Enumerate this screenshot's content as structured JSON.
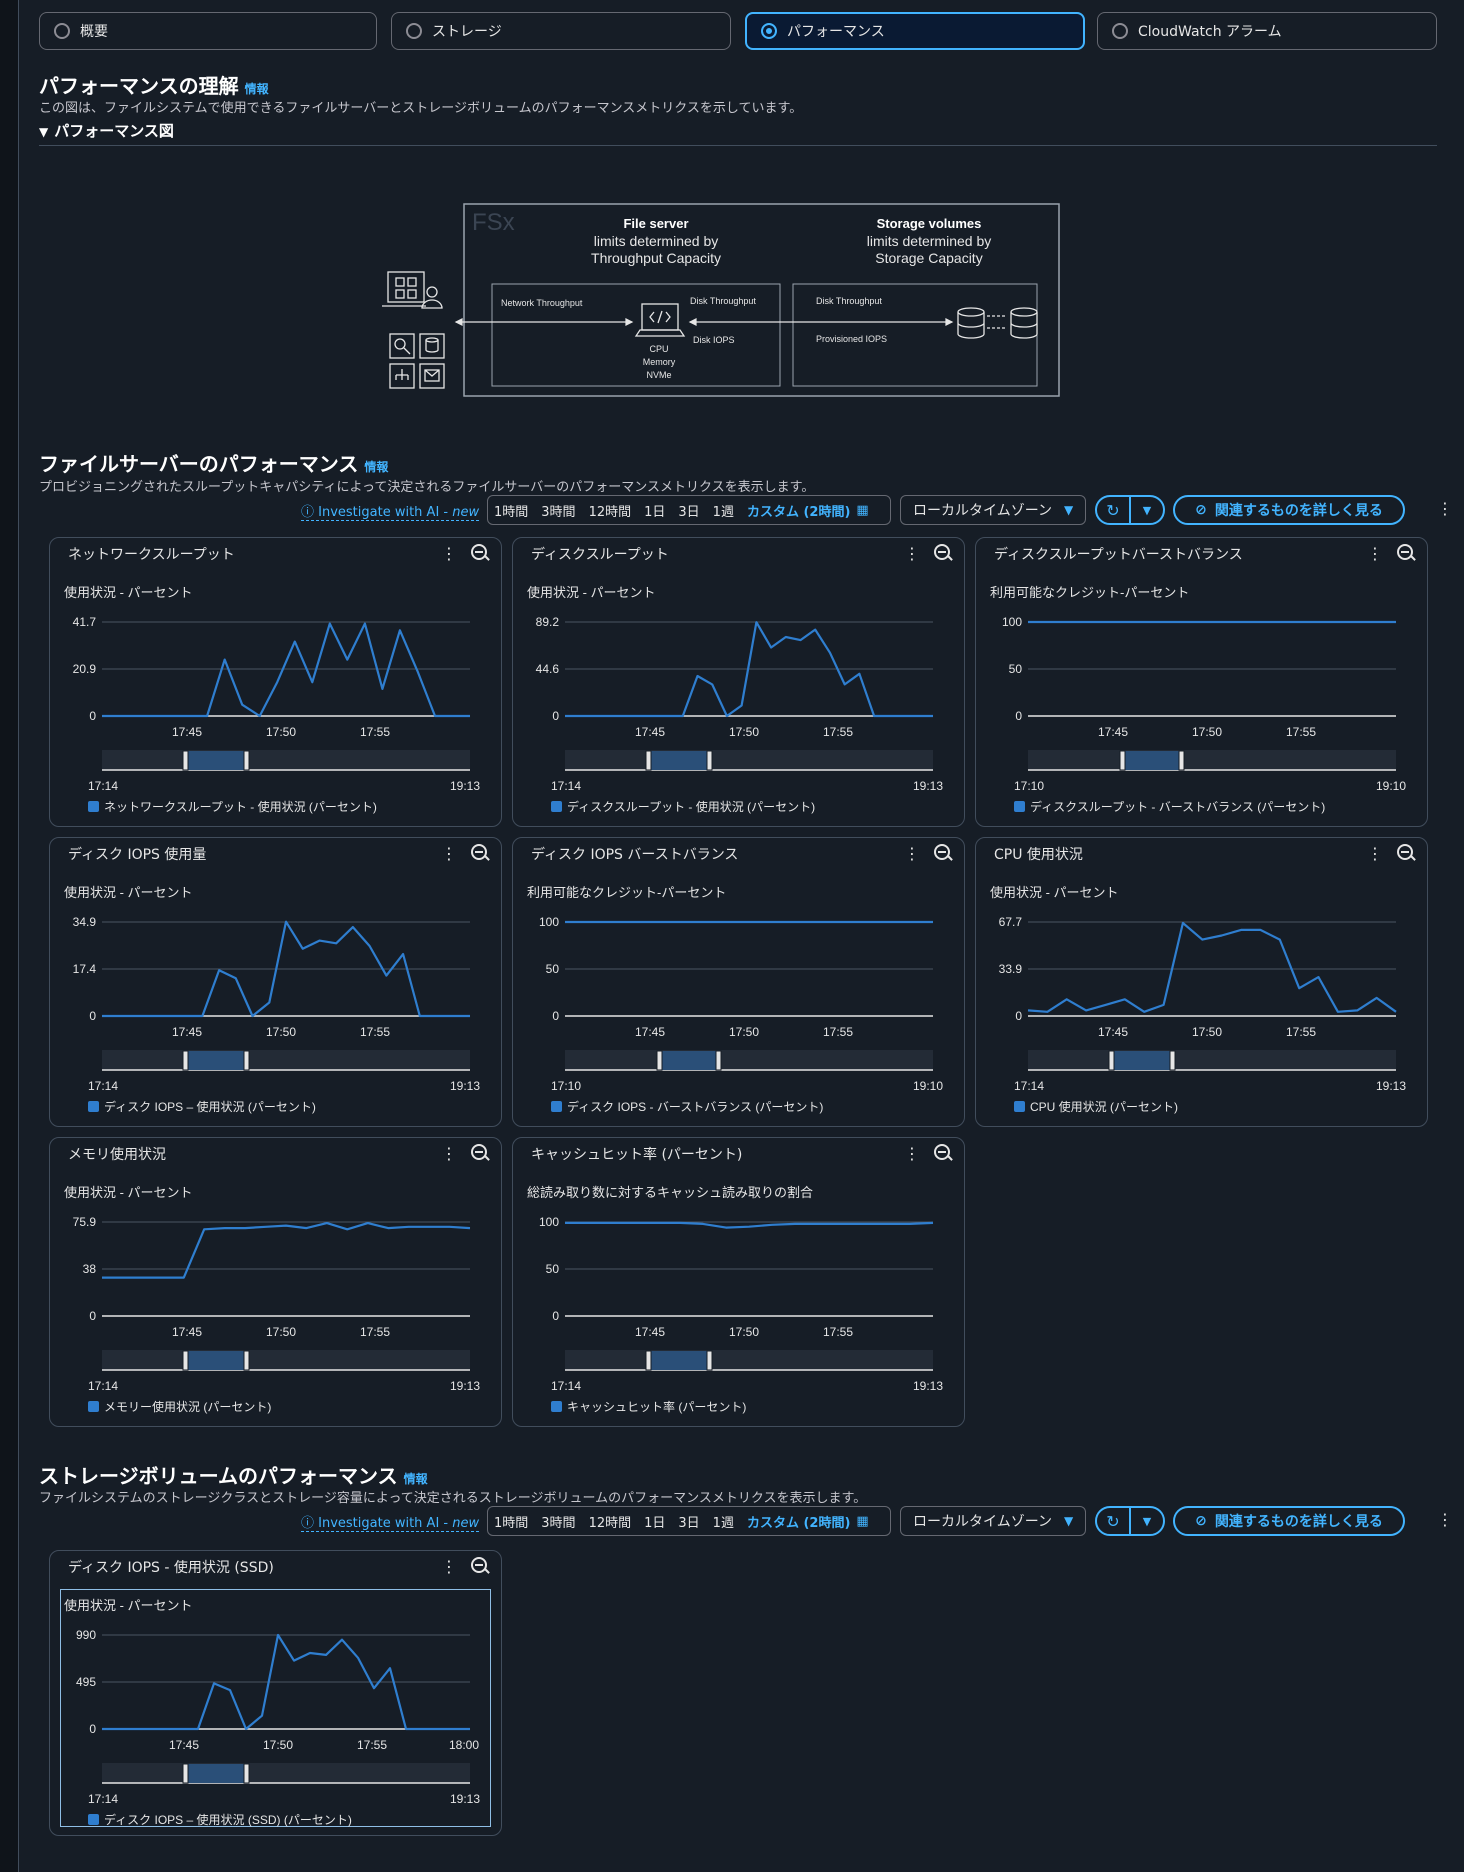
{
  "tabs": [
    {
      "label": "概要",
      "selected": false
    },
    {
      "label": "ストレージ",
      "selected": false
    },
    {
      "label": "パフォーマンス",
      "selected": true
    },
    {
      "label": "CloudWatch アラーム",
      "selected": false
    }
  ],
  "perf_understanding": {
    "title": "パフォーマンスの理解",
    "info": "情報",
    "desc": "この図は、ファイルシステムで使用できるファイルサーバーとストレージボリュームのパフォーマンスメトリクスを示しています。",
    "expander": "パフォーマンス図"
  },
  "diagram": {
    "logo": "FSx",
    "file_server_title": "File server",
    "file_server_sub1": "limits determined by",
    "file_server_sub2": "Throughput Capacity",
    "storage_title": "Storage volumes",
    "storage_sub1": "limits determined by",
    "storage_sub2": "Storage Capacity",
    "network_throughput": "Network Throughput",
    "disk_throughput": "Disk Throughput",
    "disk_iops": "Disk IOPS",
    "disk_throughput_2": "Disk Throughput",
    "provisioned_iops": "Provisioned IOPS",
    "cpu": "CPU",
    "memory": "Memory",
    "nvme": "NVMe"
  },
  "file_server": {
    "title": "ファイルサーバーのパフォーマンス",
    "info": "情報",
    "desc": "プロビジョニングされたスループットキャパシティによって決定されるファイルサーバーのパフォーマンスメトリクスを表示します。"
  },
  "storage": {
    "title": "ストレージボリュームのパフォーマンス",
    "info": "情報",
    "desc": "ファイルシステムのストレージクラスとストレージ容量によって決定されるストレージボリュームのパフォーマンスメトリクスを表示します。"
  },
  "toolbar": {
    "ai_label": "Investigate with AI - ",
    "ai_new": "new",
    "ranges": [
      "1時間",
      "3時間",
      "12時間",
      "1日",
      "3日",
      "1週"
    ],
    "custom": "カスタム (2時間)",
    "timezone": "ローカルタイムゾーン",
    "explore": "関連するものを詳しく見る"
  },
  "colors": {
    "series": "#2f7ecf",
    "accent": "#42b4ff"
  },
  "chart_data": [
    {
      "type": "line",
      "title": "ネットワークスループット",
      "subtitle": "使用状況 - パーセント",
      "ylim": [
        0,
        41.7
      ],
      "yticks": [
        "41.7",
        "20.9",
        "0"
      ],
      "xticks": [
        "17:45",
        "17:50",
        "17:55"
      ],
      "range_start": "17:14",
      "range_end": "19:13",
      "legend": "ネットワークスループット - 使用状況 (パーセント)",
      "values": [
        0,
        0,
        0,
        0,
        0,
        0,
        0,
        25,
        5,
        0,
        15,
        33,
        15,
        41,
        25,
        41,
        12,
        38,
        20,
        0,
        0,
        0
      ]
    },
    {
      "type": "line",
      "title": "ディスクスループット",
      "subtitle": "使用状況 - パーセント",
      "ylim": [
        0,
        89.2
      ],
      "yticks": [
        "89.2",
        "44.6",
        "0"
      ],
      "xticks": [
        "17:45",
        "17:50",
        "17:55"
      ],
      "range_start": "17:14",
      "range_end": "19:13",
      "legend": "ディスクスループット - 使用状況 (パーセント)",
      "values": [
        0,
        0,
        0,
        0,
        0,
        0,
        0,
        0,
        0,
        38,
        30,
        0,
        10,
        89,
        65,
        75,
        72,
        82,
        60,
        30,
        40,
        0,
        0,
        0,
        0,
        0
      ]
    },
    {
      "type": "line",
      "title": "ディスクスループットバーストバランス",
      "subtitle": "利用可能なクレジット-パーセント",
      "ylim": [
        0,
        100
      ],
      "yticks": [
        "100",
        "50",
        "0"
      ],
      "xticks": [
        "17:45",
        "17:50",
        "17:55"
      ],
      "range_start": "17:10",
      "range_end": "19:10",
      "legend": "ディスクスループット - バーストバランス (パーセント)",
      "values": [
        100,
        100,
        100,
        100,
        100,
        100,
        100,
        100,
        100,
        100
      ]
    },
    {
      "type": "line",
      "title": "ディスク IOPS 使用量",
      "subtitle": "使用状況 - パーセント",
      "ylim": [
        0,
        34.9
      ],
      "yticks": [
        "34.9",
        "17.4",
        "0"
      ],
      "xticks": [
        "17:45",
        "17:50",
        "17:55"
      ],
      "range_start": "17:14",
      "range_end": "19:13",
      "legend": "ディスク IOPS – 使用状況 (パーセント)",
      "values": [
        0,
        0,
        0,
        0,
        0,
        0,
        0,
        17,
        14,
        0,
        5,
        35,
        25,
        28,
        27,
        33,
        26,
        15,
        23,
        0,
        0,
        0,
        0
      ]
    },
    {
      "type": "line",
      "title": "ディスク IOPS バーストバランス",
      "subtitle": "利用可能なクレジット-パーセント",
      "ylim": [
        0,
        100
      ],
      "yticks": [
        "100",
        "50",
        "0"
      ],
      "xticks": [
        "17:45",
        "17:50",
        "17:55"
      ],
      "range_start": "17:10",
      "range_end": "19:10",
      "legend": "ディスク IOPS - バーストバランス (パーセント)",
      "values": [
        100,
        100,
        100,
        100,
        100,
        100,
        100,
        100,
        100,
        100
      ]
    },
    {
      "type": "line",
      "title": "CPU 使用状況",
      "subtitle": "使用状況 - パーセント",
      "ylim": [
        0,
        67.7
      ],
      "yticks": [
        "67.7",
        "33.9",
        "0"
      ],
      "xticks": [
        "17:45",
        "17:50",
        "17:55"
      ],
      "range_start": "17:14",
      "range_end": "19:13",
      "legend": "CPU 使用状況 (パーセント)",
      "values": [
        4,
        3,
        12,
        4,
        8,
        12,
        3,
        8,
        67,
        55,
        58,
        62,
        62,
        55,
        20,
        28,
        3,
        4,
        13,
        3
      ]
    },
    {
      "type": "line",
      "title": "メモリ使用状況",
      "subtitle": "使用状況 - パーセント",
      "ylim": [
        0,
        75.9
      ],
      "yticks": [
        "75.9",
        "38",
        "0"
      ],
      "xticks": [
        "17:45",
        "17:50",
        "17:55"
      ],
      "range_start": "17:14",
      "range_end": "19:13",
      "legend": "メモリー使用状況 (パーセント)",
      "values": [
        31,
        31,
        31,
        31,
        31,
        70,
        71,
        71,
        72,
        73,
        71,
        75,
        70,
        75,
        71,
        72,
        72,
        72,
        71
      ]
    },
    {
      "type": "line",
      "title": "キャッシュヒット率 (パーセント)",
      "subtitle": "総読み取り数に対するキャッシュ読み取りの割合",
      "ylim": [
        0,
        100
      ],
      "yticks": [
        "100",
        "50",
        "0"
      ],
      "xticks": [
        "17:45",
        "17:50",
        "17:55"
      ],
      "range_start": "17:14",
      "range_end": "19:13",
      "legend": "キャッシュヒット率 (パーセント)",
      "values": [
        99,
        99,
        99,
        99,
        99,
        99,
        98,
        94,
        95,
        97,
        98,
        98,
        98,
        98,
        98,
        98,
        99
      ]
    },
    {
      "type": "line",
      "title": "ディスク IOPS - 使用状況 (SSD)",
      "subtitle": "使用状況 - パーセント",
      "ylim": [
        0,
        990
      ],
      "yticks": [
        "990",
        "495",
        "0"
      ],
      "xticks": [
        "17:45",
        "17:50",
        "17:55",
        "18:00"
      ],
      "range_start": "17:14",
      "range_end": "19:13",
      "legend": "ディスク IOPS – 使用状況 (SSD) (パーセント)",
      "values": [
        0,
        0,
        0,
        0,
        0,
        0,
        0,
        480,
        410,
        0,
        140,
        990,
        720,
        800,
        780,
        940,
        750,
        430,
        640,
        0,
        0,
        0,
        0,
        0
      ]
    }
  ]
}
